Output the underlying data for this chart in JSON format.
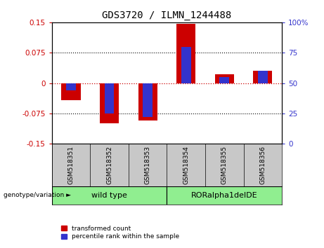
{
  "title": "GDS3720 / ILMN_1244488",
  "samples": [
    "GSM518351",
    "GSM518352",
    "GSM518353",
    "GSM518354",
    "GSM518355",
    "GSM518356"
  ],
  "red_values": [
    -0.042,
    -0.1,
    -0.092,
    0.146,
    0.022,
    0.03
  ],
  "blue_values_pct": [
    44,
    25,
    22,
    80,
    55,
    60
  ],
  "ylim_left": [
    -0.15,
    0.15
  ],
  "ylim_right": [
    0,
    100
  ],
  "yticks_left": [
    -0.15,
    -0.075,
    0,
    0.075,
    0.15
  ],
  "yticks_right": [
    0,
    25,
    50,
    75,
    100
  ],
  "ytick_labels_left": [
    "-0.15",
    "-0.075",
    "0",
    "0.075",
    "0.15"
  ],
  "ytick_labels_right": [
    "0",
    "25",
    "50",
    "75",
    "100%"
  ],
  "red_color": "#CC0000",
  "blue_color": "#3333CC",
  "bar_width": 0.5,
  "blue_bar_width": 0.25,
  "zero_line_color": "#CC0000",
  "bg_plot": "#FFFFFF",
  "bg_labels": "#C8C8C8",
  "bg_group": "#90EE90",
  "groups_info": [
    {
      "start": 0,
      "end": 2,
      "label": "wild type"
    },
    {
      "start": 3,
      "end": 5,
      "label": "RORalpha1delDE"
    }
  ]
}
